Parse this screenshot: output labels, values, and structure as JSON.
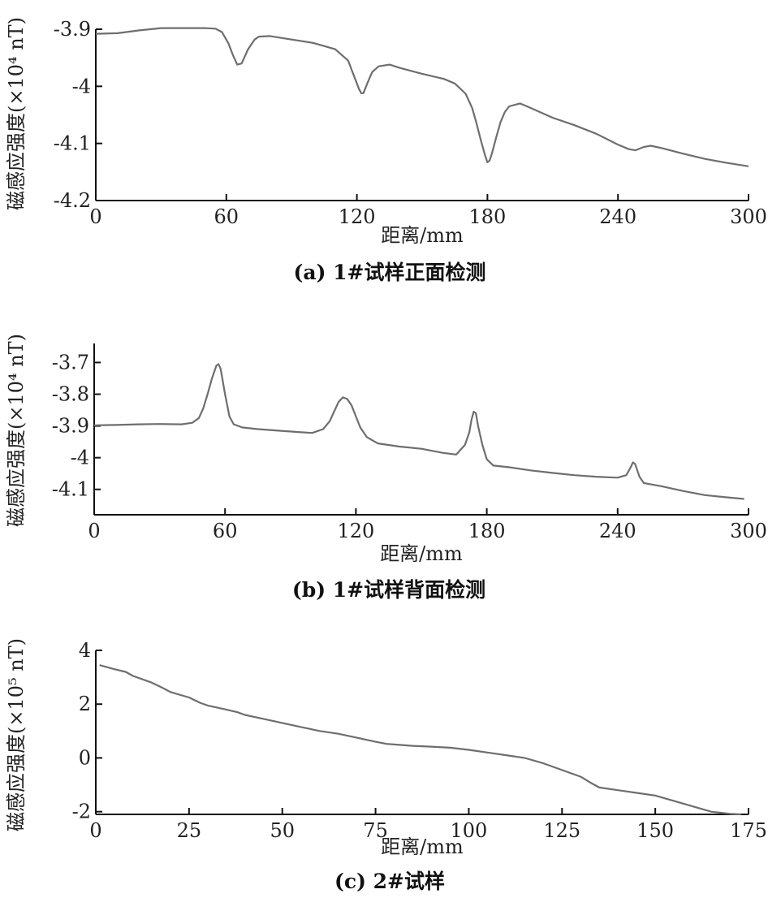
{
  "chart_data": [
    {
      "type": "line",
      "caption": "(a) 1#试样正面检测",
      "xlabel": "距离/mm",
      "ylabel": "磁感应强度(×10⁴ nT)",
      "xlim": [
        0,
        300
      ],
      "ylim": [
        -4.2,
        -3.9
      ],
      "xticks": [
        0,
        60,
        120,
        180,
        240,
        300
      ],
      "xtick_labels": [
        "0",
        "60",
        "120",
        "180",
        "240",
        "300"
      ],
      "yticks": [
        -3.9,
        -4.0,
        -4.1,
        -4.2
      ],
      "ytick_labels": [
        "-3.9",
        "-4",
        "-4.1",
        "-4.2"
      ],
      "grid": false,
      "series": [
        {
          "name": "1#试样正面",
          "x": [
            0,
            10,
            20,
            30,
            40,
            50,
            55,
            58,
            61,
            63,
            65,
            67,
            70,
            73,
            75,
            80,
            90,
            100,
            110,
            116,
            118,
            120,
            121,
            122,
            123,
            125,
            127,
            130,
            135,
            140,
            150,
            160,
            165,
            170,
            173,
            175,
            177,
            179,
            180,
            181,
            182,
            184,
            186,
            188,
            190,
            195,
            200,
            210,
            220,
            230,
            240,
            245,
            248,
            252,
            255,
            260,
            270,
            280,
            290,
            300
          ],
          "y": [
            -3.908,
            -3.907,
            -3.902,
            -3.898,
            -3.898,
            -3.898,
            -3.899,
            -3.905,
            -3.925,
            -3.945,
            -3.962,
            -3.96,
            -3.935,
            -3.918,
            -3.913,
            -3.912,
            -3.918,
            -3.924,
            -3.935,
            -3.955,
            -3.975,
            -3.995,
            -4.005,
            -4.012,
            -4.012,
            -3.993,
            -3.975,
            -3.965,
            -3.962,
            -3.968,
            -3.978,
            -3.987,
            -3.995,
            -4.013,
            -4.038,
            -4.065,
            -4.095,
            -4.122,
            -4.133,
            -4.13,
            -4.118,
            -4.09,
            -4.063,
            -4.045,
            -4.035,
            -4.03,
            -4.038,
            -4.055,
            -4.068,
            -4.083,
            -4.102,
            -4.11,
            -4.112,
            -4.106,
            -4.104,
            -4.108,
            -4.118,
            -4.127,
            -4.134,
            -4.14
          ]
        }
      ]
    },
    {
      "type": "line",
      "caption": "(b) 1#试样背面检测",
      "xlabel": "距离/mm",
      "ylabel": "磁感应强度(×10⁴ nT)",
      "xlim": [
        0,
        300
      ],
      "ylim": [
        -4.18,
        -3.64
      ],
      "xticks": [
        0,
        60,
        120,
        180,
        240,
        300
      ],
      "xtick_labels": [
        "0",
        "60",
        "120",
        "180",
        "240",
        "300"
      ],
      "yticks": [
        -3.7,
        -3.8,
        -3.9,
        -4.0,
        -4.1
      ],
      "ytick_labels": [
        "-3.7",
        "-3.8",
        "-3.9",
        "-4",
        "-4.1"
      ],
      "grid": false,
      "series": [
        {
          "name": "1#试样背面",
          "x": [
            0,
            10,
            20,
            30,
            40,
            45,
            48,
            50,
            52,
            54,
            56,
            57,
            58,
            59,
            60,
            62,
            64,
            68,
            75,
            85,
            95,
            100,
            105,
            108,
            110,
            112,
            114,
            116,
            118,
            120,
            122,
            125,
            130,
            140,
            150,
            160,
            166,
            170,
            172,
            173,
            174,
            175,
            176,
            178,
            180,
            183,
            190,
            200,
            210,
            220,
            230,
            240,
            244,
            246,
            247,
            248,
            249,
            250,
            252,
            260,
            270,
            280,
            290,
            298
          ],
          "y": [
            -3.898,
            -3.897,
            -3.895,
            -3.894,
            -3.895,
            -3.89,
            -3.875,
            -3.845,
            -3.8,
            -3.75,
            -3.71,
            -3.705,
            -3.72,
            -3.76,
            -3.8,
            -3.87,
            -3.895,
            -3.905,
            -3.91,
            -3.915,
            -3.92,
            -3.922,
            -3.91,
            -3.885,
            -3.855,
            -3.825,
            -3.81,
            -3.815,
            -3.835,
            -3.87,
            -3.905,
            -3.935,
            -3.955,
            -3.965,
            -3.972,
            -3.985,
            -3.99,
            -3.96,
            -3.92,
            -3.88,
            -3.855,
            -3.86,
            -3.9,
            -3.96,
            -4.005,
            -4.025,
            -4.03,
            -4.04,
            -4.048,
            -4.055,
            -4.06,
            -4.063,
            -4.055,
            -4.03,
            -4.015,
            -4.02,
            -4.04,
            -4.06,
            -4.08,
            -4.09,
            -4.105,
            -4.118,
            -4.125,
            -4.13
          ]
        }
      ]
    },
    {
      "type": "line",
      "caption": "(c) 2#试样",
      "xlabel": "距离/mm",
      "ylabel": "磁感应强度(×10⁵ nT)",
      "xlim": [
        0,
        175
      ],
      "ylim": [
        -2.1,
        4
      ],
      "xticks": [
        0,
        25,
        50,
        75,
        100,
        125,
        150,
        175
      ],
      "xtick_labels": [
        "0",
        "25",
        "50",
        "75",
        "100",
        "125",
        "150",
        "175"
      ],
      "yticks": [
        4,
        2,
        0,
        -2
      ],
      "ytick_labels": [
        "4",
        "2",
        "0",
        "-2"
      ],
      "grid": false,
      "series": [
        {
          "name": "2#试样",
          "x": [
            1,
            5,
            8,
            10,
            15,
            18,
            20,
            25,
            28,
            30,
            35,
            38,
            40,
            45,
            50,
            55,
            60,
            65,
            70,
            75,
            78,
            80,
            85,
            90,
            95,
            100,
            105,
            110,
            115,
            120,
            125,
            130,
            133,
            135,
            140,
            145,
            150,
            155,
            160,
            165,
            170,
            173
          ],
          "y": [
            3.45,
            3.3,
            3.2,
            3.05,
            2.8,
            2.6,
            2.45,
            2.25,
            2.05,
            1.95,
            1.8,
            1.7,
            1.6,
            1.45,
            1.3,
            1.15,
            1.0,
            0.9,
            0.75,
            0.6,
            0.52,
            0.5,
            0.45,
            0.42,
            0.38,
            0.3,
            0.2,
            0.1,
            0.0,
            -0.2,
            -0.45,
            -0.7,
            -0.95,
            -1.1,
            -1.2,
            -1.3,
            -1.4,
            -1.6,
            -1.8,
            -2.0,
            -2.08,
            -2.1
          ]
        }
      ]
    }
  ]
}
